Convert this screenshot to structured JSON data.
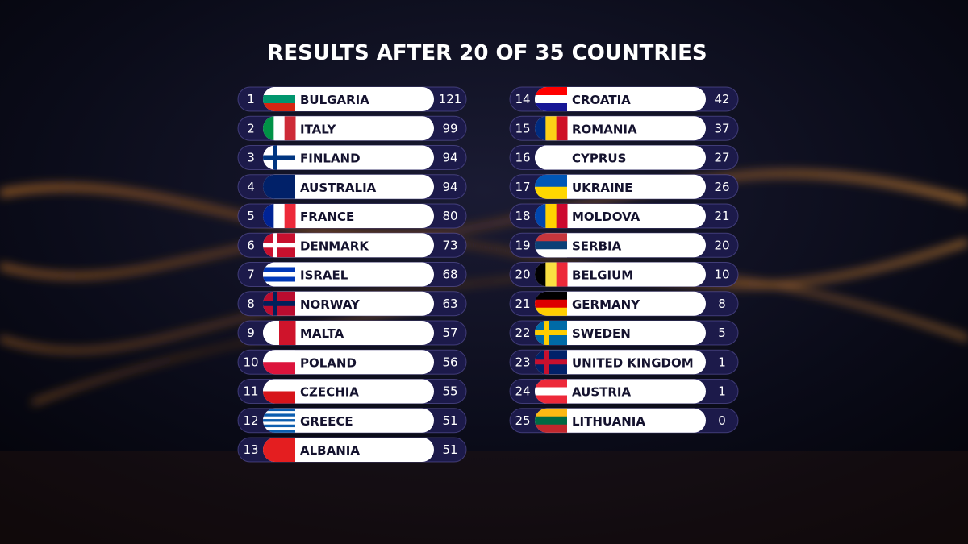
{
  "header": {
    "title": "RESULTS AFTER 20 OF 35 COUNTRIES"
  },
  "scoreboard": {
    "rows": [
      {
        "rank": 1,
        "country": "BULGARIA",
        "points": 121
      },
      {
        "rank": 2,
        "country": "ITALY",
        "points": 99
      },
      {
        "rank": 3,
        "country": "FINLAND",
        "points": 94
      },
      {
        "rank": 4,
        "country": "AUSTRALIA",
        "points": 94
      },
      {
        "rank": 5,
        "country": "FRANCE",
        "points": 80
      },
      {
        "rank": 6,
        "country": "DENMARK",
        "points": 73
      },
      {
        "rank": 7,
        "country": "ISRAEL",
        "points": 68
      },
      {
        "rank": 8,
        "country": "NORWAY",
        "points": 63
      },
      {
        "rank": 9,
        "country": "MALTA",
        "points": 57
      },
      {
        "rank": 10,
        "country": "POLAND",
        "points": 56
      },
      {
        "rank": 11,
        "country": "CZECHIA",
        "points": 55
      },
      {
        "rank": 12,
        "country": "GREECE",
        "points": 51
      },
      {
        "rank": 13,
        "country": "ALBANIA",
        "points": 51
      },
      {
        "rank": 14,
        "country": "CROATIA",
        "points": 42
      },
      {
        "rank": 15,
        "country": "ROMANIA",
        "points": 37
      },
      {
        "rank": 16,
        "country": "CYPRUS",
        "points": 27
      },
      {
        "rank": 17,
        "country": "UKRAINE",
        "points": 26
      },
      {
        "rank": 18,
        "country": "MOLDOVA",
        "points": 21
      },
      {
        "rank": 19,
        "country": "SERBIA",
        "points": 20
      },
      {
        "rank": 20,
        "country": "BELGIUM",
        "points": 10
      },
      {
        "rank": 21,
        "country": "GERMANY",
        "points": 8
      },
      {
        "rank": 22,
        "country": "SWEDEN",
        "points": 5
      },
      {
        "rank": 23,
        "country": "UNITED KINGDOM",
        "points": 1
      },
      {
        "rank": 24,
        "country": "AUSTRIA",
        "points": 1
      },
      {
        "rank": 25,
        "country": "LITHUANIA",
        "points": 0
      }
    ]
  }
}
